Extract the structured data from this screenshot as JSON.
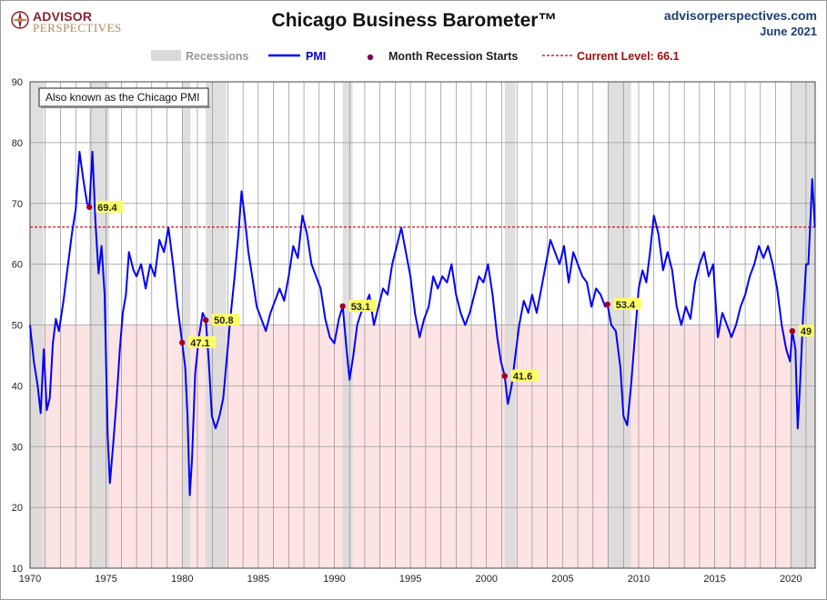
{
  "header": {
    "logo_line1": "ADVISOR",
    "logo_line2": "PERSPECTIVES",
    "title": "Chicago Business Barometer™",
    "site": "advisorperspectives.com",
    "date": "June 2021"
  },
  "colors": {
    "pmi_line": "#0000ff",
    "recession_band": "#d9d9d9",
    "below50_fill": "#fde3e3",
    "current_level_line": "#c00000",
    "recession_marker": "#a00020",
    "label_bg": "#ffff66"
  },
  "chart_data": {
    "type": "line",
    "title": "Chicago Business Barometer™",
    "xlim": [
      1970,
      2021.6
    ],
    "ylim": [
      10,
      90
    ],
    "yticks": [
      10,
      20,
      30,
      40,
      50,
      60,
      70,
      80,
      90
    ],
    "xticks": [
      1970,
      1975,
      1980,
      1985,
      1990,
      1995,
      2000,
      2005,
      2010,
      2015,
      2020
    ],
    "grid": "vertical yearly gridlines, horizontal at y-ticks",
    "shaded_below": 50,
    "annotation_box": "Also known as the Chicago PMI",
    "legend": {
      "position": "top",
      "items": [
        "Recessions",
        "PMI",
        "Month Recession Starts",
        "Current Level: 66.1"
      ]
    },
    "current_level": 66.1,
    "recessions": [
      [
        1970.0,
        1970.9
      ],
      [
        1973.9,
        1975.2
      ],
      [
        1980.0,
        1980.55
      ],
      [
        1981.55,
        1982.9
      ],
      [
        1990.55,
        1991.2
      ],
      [
        2001.2,
        2001.9
      ],
      [
        2007.95,
        2009.5
      ],
      [
        2020.0,
        2021.6
      ]
    ],
    "recession_starts": [
      {
        "date": 1973.9,
        "value": 69.4,
        "label": "69.4"
      },
      {
        "date": 1980.0,
        "value": 47.1,
        "label": "47.1"
      },
      {
        "date": 1981.55,
        "value": 50.8,
        "label": "50.8"
      },
      {
        "date": 1990.55,
        "value": 53.1,
        "label": "53.1"
      },
      {
        "date": 2001.2,
        "value": 41.6,
        "label": "41.6"
      },
      {
        "date": 2007.95,
        "value": 53.4,
        "label": "53.4"
      },
      {
        "date": 2020.1,
        "value": 49.0,
        "label": "49"
      }
    ],
    "series": [
      {
        "name": "PMI",
        "points": [
          [
            1970.0,
            50.0
          ],
          [
            1970.25,
            44.0
          ],
          [
            1970.5,
            40.0
          ],
          [
            1970.7,
            35.5
          ],
          [
            1970.9,
            46.0
          ],
          [
            1971.1,
            36.0
          ],
          [
            1971.3,
            38.0
          ],
          [
            1971.5,
            47.0
          ],
          [
            1971.7,
            51.0
          ],
          [
            1971.9,
            49.0
          ],
          [
            1972.2,
            54.0
          ],
          [
            1972.5,
            60.0
          ],
          [
            1972.75,
            65.0
          ],
          [
            1973.0,
            69.0
          ],
          [
            1973.25,
            78.5
          ],
          [
            1973.5,
            74.0
          ],
          [
            1973.75,
            70.0
          ],
          [
            1973.9,
            69.4
          ],
          [
            1974.1,
            78.5
          ],
          [
            1974.3,
            67.0
          ],
          [
            1974.5,
            58.5
          ],
          [
            1974.7,
            63.0
          ],
          [
            1974.9,
            55.0
          ],
          [
            1975.1,
            32.0
          ],
          [
            1975.25,
            24.0
          ],
          [
            1975.45,
            30.0
          ],
          [
            1975.7,
            38.0
          ],
          [
            1975.9,
            46.0
          ],
          [
            1976.1,
            52.0
          ],
          [
            1976.3,
            55.0
          ],
          [
            1976.5,
            62.0
          ],
          [
            1976.8,
            59.0
          ],
          [
            1977.0,
            58.0
          ],
          [
            1977.3,
            60.0
          ],
          [
            1977.6,
            56.0
          ],
          [
            1977.9,
            60.0
          ],
          [
            1978.2,
            58.0
          ],
          [
            1978.5,
            64.0
          ],
          [
            1978.8,
            62.0
          ],
          [
            1979.1,
            66.0
          ],
          [
            1979.4,
            60.0
          ],
          [
            1979.7,
            53.0
          ],
          [
            1980.0,
            47.1
          ],
          [
            1980.2,
            43.0
          ],
          [
            1980.35,
            35.0
          ],
          [
            1980.5,
            22.0
          ],
          [
            1980.65,
            28.0
          ],
          [
            1980.85,
            42.0
          ],
          [
            1981.1,
            48.0
          ],
          [
            1981.35,
            52.0
          ],
          [
            1981.55,
            50.8
          ],
          [
            1981.75,
            44.0
          ],
          [
            1981.95,
            35.0
          ],
          [
            1982.2,
            33.0
          ],
          [
            1982.45,
            35.0
          ],
          [
            1982.7,
            38.0
          ],
          [
            1982.95,
            45.0
          ],
          [
            1983.2,
            52.0
          ],
          [
            1983.45,
            58.0
          ],
          [
            1983.7,
            65.0
          ],
          [
            1983.9,
            72.0
          ],
          [
            1984.1,
            68.0
          ],
          [
            1984.35,
            62.0
          ],
          [
            1984.6,
            58.0
          ],
          [
            1984.9,
            53.0
          ],
          [
            1985.2,
            51.0
          ],
          [
            1985.5,
            49.0
          ],
          [
            1985.8,
            52.0
          ],
          [
            1986.1,
            54.0
          ],
          [
            1986.4,
            56.0
          ],
          [
            1986.7,
            54.0
          ],
          [
            1987.0,
            58.0
          ],
          [
            1987.3,
            63.0
          ],
          [
            1987.6,
            61.0
          ],
          [
            1987.9,
            68.0
          ],
          [
            1988.2,
            65.0
          ],
          [
            1988.5,
            60.0
          ],
          [
            1988.8,
            58.0
          ],
          [
            1989.1,
            56.0
          ],
          [
            1989.4,
            51.0
          ],
          [
            1989.7,
            48.0
          ],
          [
            1990.0,
            47.0
          ],
          [
            1990.3,
            51.0
          ],
          [
            1990.55,
            53.1
          ],
          [
            1990.8,
            46.0
          ],
          [
            1991.0,
            41.0
          ],
          [
            1991.25,
            45.0
          ],
          [
            1991.5,
            50.0
          ],
          [
            1991.75,
            52.0
          ],
          [
            1992.0,
            53.0
          ],
          [
            1992.3,
            55.0
          ],
          [
            1992.6,
            50.0
          ],
          [
            1992.9,
            53.0
          ],
          [
            1993.2,
            56.0
          ],
          [
            1993.5,
            55.0
          ],
          [
            1993.8,
            60.0
          ],
          [
            1994.1,
            63.0
          ],
          [
            1994.4,
            66.0
          ],
          [
            1994.7,
            62.0
          ],
          [
            1995.0,
            58.0
          ],
          [
            1995.3,
            52.0
          ],
          [
            1995.6,
            48.0
          ],
          [
            1995.9,
            51.0
          ],
          [
            1996.2,
            53.0
          ],
          [
            1996.5,
            58.0
          ],
          [
            1996.8,
            56.0
          ],
          [
            1997.1,
            58.0
          ],
          [
            1997.4,
            57.0
          ],
          [
            1997.7,
            60.0
          ],
          [
            1998.0,
            55.0
          ],
          [
            1998.3,
            52.0
          ],
          [
            1998.6,
            50.0
          ],
          [
            1998.9,
            52.0
          ],
          [
            1999.2,
            55.0
          ],
          [
            1999.5,
            58.0
          ],
          [
            1999.8,
            57.0
          ],
          [
            2000.1,
            60.0
          ],
          [
            2000.4,
            55.0
          ],
          [
            2000.7,
            48.0
          ],
          [
            2000.95,
            44.0
          ],
          [
            2001.2,
            41.6
          ],
          [
            2001.4,
            37.0
          ],
          [
            2001.65,
            40.0
          ],
          [
            2001.9,
            45.0
          ],
          [
            2002.15,
            50.0
          ],
          [
            2002.45,
            54.0
          ],
          [
            2002.75,
            52.0
          ],
          [
            2003.0,
            55.0
          ],
          [
            2003.3,
            52.0
          ],
          [
            2003.6,
            56.0
          ],
          [
            2003.9,
            60.0
          ],
          [
            2004.2,
            64.0
          ],
          [
            2004.5,
            62.0
          ],
          [
            2004.8,
            60.0
          ],
          [
            2005.1,
            63.0
          ],
          [
            2005.4,
            57.0
          ],
          [
            2005.7,
            62.0
          ],
          [
            2006.0,
            60.0
          ],
          [
            2006.3,
            58.0
          ],
          [
            2006.6,
            57.0
          ],
          [
            2006.9,
            53.0
          ],
          [
            2007.2,
            56.0
          ],
          [
            2007.5,
            55.0
          ],
          [
            2007.8,
            53.0
          ],
          [
            2007.95,
            53.4
          ],
          [
            2008.2,
            50.0
          ],
          [
            2008.5,
            49.0
          ],
          [
            2008.8,
            43.0
          ],
          [
            2009.0,
            35.0
          ],
          [
            2009.25,
            33.5
          ],
          [
            2009.5,
            40.0
          ],
          [
            2009.75,
            48.0
          ],
          [
            2010.0,
            56.0
          ],
          [
            2010.25,
            59.0
          ],
          [
            2010.5,
            57.0
          ],
          [
            2010.75,
            62.0
          ],
          [
            2011.0,
            68.0
          ],
          [
            2011.3,
            65.0
          ],
          [
            2011.6,
            59.0
          ],
          [
            2011.9,
            62.0
          ],
          [
            2012.2,
            59.0
          ],
          [
            2012.5,
            53.0
          ],
          [
            2012.8,
            50.0
          ],
          [
            2013.1,
            53.0
          ],
          [
            2013.4,
            51.0
          ],
          [
            2013.7,
            57.0
          ],
          [
            2014.0,
            60.0
          ],
          [
            2014.3,
            62.0
          ],
          [
            2014.6,
            58.0
          ],
          [
            2014.9,
            60.0
          ],
          [
            2015.2,
            48.0
          ],
          [
            2015.5,
            52.0
          ],
          [
            2015.8,
            50.0
          ],
          [
            2016.1,
            48.0
          ],
          [
            2016.4,
            50.0
          ],
          [
            2016.7,
            53.0
          ],
          [
            2017.0,
            55.0
          ],
          [
            2017.3,
            58.0
          ],
          [
            2017.6,
            60.0
          ],
          [
            2017.9,
            63.0
          ],
          [
            2018.2,
            61.0
          ],
          [
            2018.5,
            63.0
          ],
          [
            2018.8,
            60.0
          ],
          [
            2019.1,
            56.0
          ],
          [
            2019.4,
            50.0
          ],
          [
            2019.7,
            46.0
          ],
          [
            2019.95,
            44.0
          ],
          [
            2020.1,
            49.0
          ],
          [
            2020.3,
            46.0
          ],
          [
            2020.45,
            33.0
          ],
          [
            2020.6,
            40.0
          ],
          [
            2020.8,
            51.0
          ],
          [
            2021.0,
            60.0
          ],
          [
            2021.15,
            60.0
          ],
          [
            2021.3,
            68.0
          ],
          [
            2021.4,
            74.0
          ],
          [
            2021.5,
            70.0
          ],
          [
            2021.58,
            66.1
          ]
        ]
      }
    ]
  }
}
